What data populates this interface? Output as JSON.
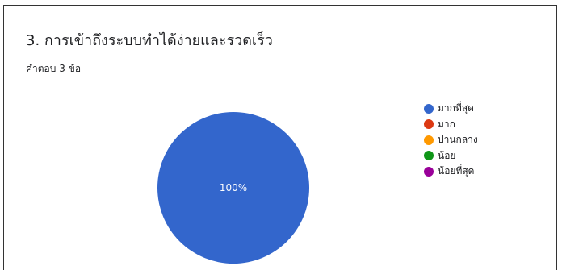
{
  "title": "3. การเข้าถึงระบบทำได้ง่ายและรวดเร็ว",
  "subtitle": "คำตอบ 3 ข้อ",
  "colors": {
    "border": "#333333",
    "text": "#202124",
    "slice_label": "#ffffff"
  },
  "chart_data": {
    "type": "pie",
    "title": "3. การเข้าถึงระบบทำได้ง่ายและรวดเร็ว",
    "legend_position": "right",
    "categories": [
      "มากที่สุด",
      "มาก",
      "ปานกลาง",
      "น้อย",
      "น้อยที่สุด"
    ],
    "values": [
      3,
      0,
      0,
      0,
      0
    ],
    "percent_labels": [
      "100%",
      "",
      "",
      "",
      ""
    ],
    "colors": [
      "#3366cc",
      "#dc3912",
      "#ff9900",
      "#109618",
      "#990099"
    ]
  }
}
